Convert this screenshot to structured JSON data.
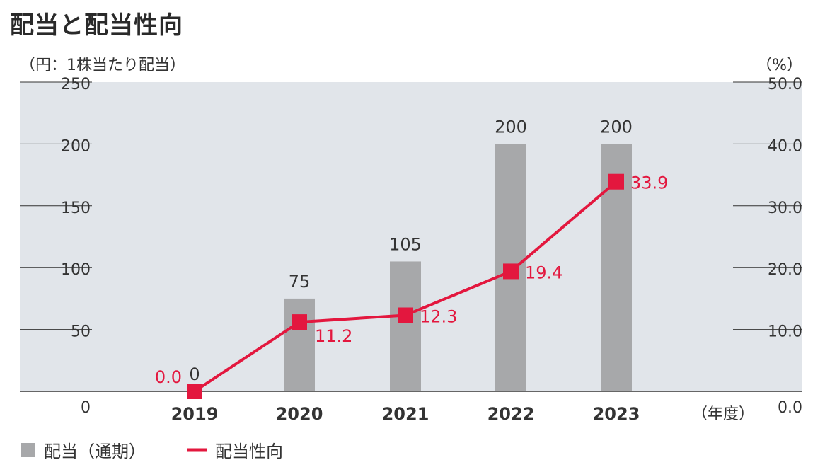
{
  "title": "配当と配当性向",
  "left_unit": "（円：1株当たり配当）",
  "right_unit": "（%）",
  "x_unit": "（年度）",
  "colors": {
    "bar": "#a7a8aa",
    "line": "#e3173e",
    "plot_bg": "#e1e5ea",
    "grid": "#333333"
  },
  "chart_data": {
    "type": "bar+line",
    "categories": [
      "2019",
      "2020",
      "2021",
      "2022",
      "2023"
    ],
    "series": [
      {
        "name": "配当（通期）",
        "type": "bar",
        "axis": "left",
        "values": [
          0,
          75,
          105,
          200,
          200
        ],
        "labels": [
          "0",
          "75",
          "105",
          "200",
          "200"
        ]
      },
      {
        "name": "配当性向",
        "type": "line",
        "axis": "right",
        "values": [
          0.0,
          11.2,
          12.3,
          19.4,
          33.9
        ],
        "labels": [
          "0.0",
          "11.2",
          "12.3",
          "19.4",
          "33.9"
        ]
      }
    ],
    "left_axis": {
      "ylim": [
        0,
        250
      ],
      "ticks": [
        "0",
        "50",
        "100",
        "150",
        "200",
        "250"
      ]
    },
    "right_axis": {
      "ylim": [
        0,
        50
      ],
      "ticks": [
        "0.0",
        "10.0",
        "20.0",
        "30.0",
        "40.0",
        "50.0"
      ]
    },
    "grid": true,
    "legend_position": "bottom-left"
  },
  "legend": [
    {
      "label": "配当（通期）",
      "kind": "bar"
    },
    {
      "label": "配当性向",
      "kind": "line"
    }
  ]
}
